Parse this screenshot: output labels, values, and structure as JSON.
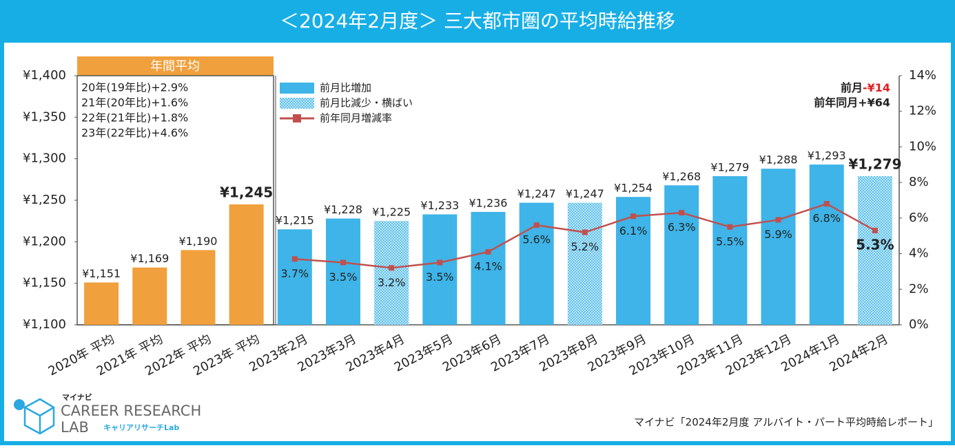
{
  "chart_data": {
    "type": "bar",
    "title": "＜2024年2月度＞ 三大都市圏の平均時給推移",
    "categories": [
      "2020年 平均",
      "2021年 平均",
      "2022年 平均",
      "2023年 平均",
      "2023年2月",
      "2023年3月",
      "2023年4月",
      "2023年5月",
      "2023年6月",
      "2023年7月",
      "2023年8月",
      "2023年9月",
      "2023年10月",
      "2023年11月",
      "2023年12月",
      "2024年1月",
      "2024年2月"
    ],
    "series": [
      {
        "name": "年間平均",
        "type": "bar",
        "color": "#f0a03c",
        "values": [
          1151,
          1169,
          1190,
          1245,
          null,
          null,
          null,
          null,
          null,
          null,
          null,
          null,
          null,
          null,
          null,
          null,
          null
        ],
        "value_labels": [
          "¥1,151",
          "¥1,169",
          "¥1,190",
          "¥1,245",
          null,
          null,
          null,
          null,
          null,
          null,
          null,
          null,
          null,
          null,
          null,
          null,
          null
        ]
      },
      {
        "name": "前月比増加",
        "type": "bar",
        "color": "#3eb4e8",
        "values": [
          null,
          null,
          null,
          null,
          1215,
          1228,
          null,
          1233,
          1236,
          1247,
          null,
          1254,
          1268,
          1279,
          1288,
          1293,
          null
        ],
        "value_labels": [
          null,
          null,
          null,
          null,
          "¥1,215",
          "¥1,228",
          null,
          "¥1,233",
          "¥1,236",
          "¥1,247",
          null,
          "¥1,254",
          "¥1,268",
          "¥1,279",
          "¥1,288",
          "¥1,293",
          null
        ]
      },
      {
        "name": "前月比減少・横ばい",
        "type": "bar",
        "color": "#9dd8f3",
        "pattern": "dots",
        "values": [
          null,
          null,
          null,
          null,
          null,
          null,
          1225,
          null,
          null,
          null,
          1247,
          null,
          null,
          null,
          null,
          null,
          1279
        ],
        "value_labels": [
          null,
          null,
          null,
          null,
          null,
          null,
          "¥1,225",
          null,
          null,
          null,
          "¥1,247",
          null,
          null,
          null,
          null,
          null,
          "¥1,279"
        ]
      },
      {
        "name": "前年同月増減率",
        "type": "line",
        "axis": "y2",
        "color": "#c0504d",
        "values": [
          null,
          null,
          null,
          null,
          3.7,
          3.5,
          3.2,
          3.5,
          4.1,
          5.6,
          5.2,
          6.1,
          6.3,
          5.5,
          5.9,
          6.8,
          5.3
        ],
        "value_labels": [
          null,
          null,
          null,
          null,
          "3.7%",
          "3.5%",
          "3.2%",
          "3.5%",
          "4.1%",
          "5.6%",
          "5.2%",
          "6.1%",
          "6.3%",
          "5.5%",
          "5.9%",
          "6.8%",
          "5.3%"
        ]
      }
    ],
    "ylim": [
      1100,
      1400
    ],
    "yticks": [
      {
        "value": 1100,
        "label": "¥1,100"
      },
      {
        "value": 1150,
        "label": "¥1,150"
      },
      {
        "value": 1200,
        "label": "¥1,200"
      },
      {
        "value": 1250,
        "label": "¥1,250"
      },
      {
        "value": 1300,
        "label": "¥1,300"
      },
      {
        "value": 1350,
        "label": "¥1,350"
      },
      {
        "value": 1400,
        "label": "¥1,400"
      }
    ],
    "y2lim": [
      0,
      14
    ],
    "y2ticks": [
      {
        "value": 0,
        "label": "0%"
      },
      {
        "value": 2,
        "label": "2%"
      },
      {
        "value": 4,
        "label": "4%"
      },
      {
        "value": 6,
        "label": "6%"
      },
      {
        "value": 8,
        "label": "8%"
      },
      {
        "value": 10,
        "label": "10%"
      },
      {
        "value": 12,
        "label": "12%"
      },
      {
        "value": 14,
        "label": "14%"
      }
    ],
    "grid": false,
    "annual_notes": [
      "20年(19年比)+2.9%",
      "21年(20年比)+1.6%",
      "22年(21年比)+1.8%",
      "23年(22年比)+4.6%"
    ],
    "mom_label": "前月",
    "mom_change": "-¥14",
    "yoy_change": "前年同月+¥64",
    "source": "マイナビ「2024年2月度 アルバイト・パート平均時給レポート」",
    "logo": {
      "brand": "マイナビ",
      "line1": "CAREER RESEARCH",
      "line2": "LAB",
      "sub": "キャリアリサーチLab"
    }
  }
}
